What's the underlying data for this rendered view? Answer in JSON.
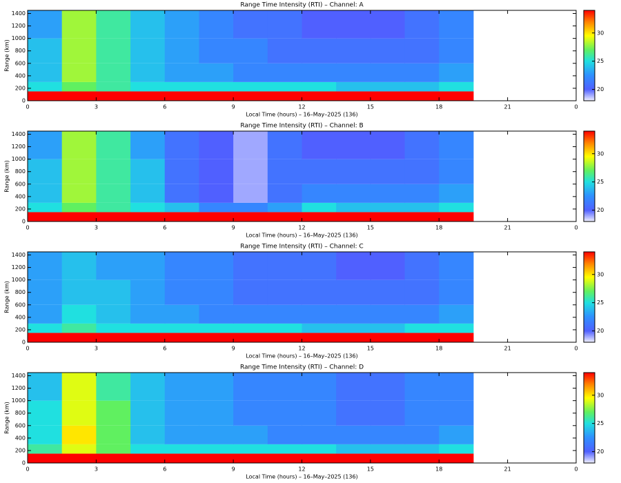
{
  "chart_data": [
    {
      "type": "heatmap",
      "title": "Range Time Intensity (RTI) – Channel: A",
      "xlabel": "Local Time (hours) – 16–May–2025 (136)",
      "ylabel": "Range (km)",
      "xlim": [
        0,
        24
      ],
      "xticks": [
        0,
        3,
        6,
        9,
        12,
        15,
        18,
        21,
        {
          "value": 24,
          "label": "0"
        }
      ],
      "ylim": [
        0,
        1450
      ],
      "yticks": [
        0,
        200,
        400,
        600,
        800,
        1000,
        1200,
        1400
      ],
      "xbins": [
        0,
        1.5,
        3,
        4.5,
        6,
        7.5,
        9,
        10.5,
        12,
        13.5,
        15,
        16.5,
        18,
        19.5
      ],
      "ybins": [
        0,
        150,
        300,
        600,
        1000,
        1450
      ],
      "z": [
        [
          34,
          34,
          34,
          34,
          34,
          34,
          34,
          34,
          34,
          34,
          34,
          34,
          34
        ],
        [
          25,
          27,
          26,
          25,
          25,
          25,
          25,
          25,
          25,
          24,
          24,
          24,
          25
        ],
        [
          24,
          28,
          26,
          24,
          23,
          23,
          22,
          22,
          22,
          22,
          22,
          22,
          23
        ],
        [
          24,
          28,
          26,
          24,
          23,
          22,
          22,
          21,
          21,
          21,
          21,
          21,
          22
        ],
        [
          23,
          28,
          26,
          24,
          23,
          22,
          21,
          21,
          20,
          20,
          20,
          21,
          22
        ]
      ],
      "clim": [
        18,
        34
      ],
      "cticks": [
        20,
        25,
        30
      ],
      "colormap": [
        {
          "value": 18,
          "color": "#f0f0ff"
        },
        {
          "value": 20,
          "color": "#5060ff"
        },
        {
          "value": 22.5,
          "color": "#2f90ff"
        },
        {
          "value": 25,
          "color": "#20e0e0"
        },
        {
          "value": 27,
          "color": "#60f060"
        },
        {
          "value": 29.5,
          "color": "#ffff00"
        },
        {
          "value": 32,
          "color": "#ff8000"
        },
        {
          "value": 34,
          "color": "#ff0000"
        }
      ]
    },
    {
      "type": "heatmap",
      "title": "Range Time Intensity (RTI) – Channel: B",
      "xlabel": "Local Time (hours) – 16–May–2025 (136)",
      "ylabel": "Range (km)",
      "xlim": [
        0,
        24
      ],
      "xticks": [
        0,
        3,
        6,
        9,
        12,
        15,
        18,
        21,
        {
          "value": 24,
          "label": "0"
        }
      ],
      "ylim": [
        0,
        1450
      ],
      "yticks": [
        0,
        200,
        400,
        600,
        800,
        1000,
        1200,
        1400
      ],
      "xbins": [
        0,
        1.5,
        3,
        4.5,
        6,
        7.5,
        9,
        10.5,
        12,
        13.5,
        15,
        16.5,
        18,
        19.5
      ],
      "ybins": [
        0,
        150,
        300,
        600,
        1000,
        1450
      ],
      "z": [
        [
          34,
          34,
          34,
          34,
          34,
          34,
          34,
          34,
          34,
          34,
          34,
          34,
          34
        ],
        [
          25,
          27,
          26,
          25,
          24,
          22,
          22,
          23,
          25,
          24,
          24,
          24,
          25
        ],
        [
          24,
          28,
          26,
          24,
          21,
          20,
          19,
          21,
          22,
          22,
          22,
          22,
          23
        ],
        [
          24,
          28,
          26,
          24,
          21,
          20,
          19,
          21,
          21,
          21,
          21,
          21,
          22
        ],
        [
          23,
          28,
          26,
          23,
          21,
          20,
          19,
          21,
          20,
          20,
          20,
          21,
          22
        ]
      ],
      "clim": [
        18,
        34
      ],
      "cticks": [
        20,
        25,
        30
      ],
      "colormap": [
        {
          "value": 18,
          "color": "#f0f0ff"
        },
        {
          "value": 20,
          "color": "#5060ff"
        },
        {
          "value": 22.5,
          "color": "#2f90ff"
        },
        {
          "value": 25,
          "color": "#20e0e0"
        },
        {
          "value": 27,
          "color": "#60f060"
        },
        {
          "value": 29.5,
          "color": "#ffff00"
        },
        {
          "value": 32,
          "color": "#ff8000"
        },
        {
          "value": 34,
          "color": "#ff0000"
        }
      ]
    },
    {
      "type": "heatmap",
      "title": "Range Time Intensity (RTI) – Channel: C",
      "xlabel": "Local Time (hours) – 16–May–2025 (136)",
      "ylabel": "Range (km)",
      "xlim": [
        0,
        24
      ],
      "xticks": [
        0,
        3,
        6,
        9,
        12,
        15,
        18,
        21,
        {
          "value": 24,
          "label": "0"
        }
      ],
      "ylim": [
        0,
        1450
      ],
      "yticks": [
        0,
        200,
        400,
        600,
        800,
        1000,
        1200,
        1400
      ],
      "xbins": [
        0,
        1.5,
        3,
        4.5,
        6,
        7.5,
        9,
        10.5,
        12,
        13.5,
        15,
        16.5,
        18,
        19.5
      ],
      "ybins": [
        0,
        150,
        300,
        600,
        1000,
        1450
      ],
      "z": [
        [
          34,
          34,
          34,
          34,
          34,
          34,
          34,
          34,
          34,
          34,
          34,
          34,
          34
        ],
        [
          25,
          26,
          25,
          25,
          25,
          25,
          25,
          25,
          24,
          24,
          24,
          25,
          25
        ],
        [
          23,
          25,
          24,
          23,
          23,
          22,
          22,
          22,
          22,
          22,
          22,
          22,
          23
        ],
        [
          23,
          24,
          24,
          23,
          22,
          22,
          21,
          21,
          21,
          21,
          21,
          21,
          22
        ],
        [
          23,
          24,
          23,
          23,
          22,
          22,
          21,
          21,
          21,
          20,
          20,
          21,
          22
        ]
      ],
      "clim": [
        18,
        34
      ],
      "cticks": [
        20,
        25,
        30
      ],
      "colormap": [
        {
          "value": 18,
          "color": "#f0f0ff"
        },
        {
          "value": 20,
          "color": "#5060ff"
        },
        {
          "value": 22.5,
          "color": "#2f90ff"
        },
        {
          "value": 25,
          "color": "#20e0e0"
        },
        {
          "value": 27,
          "color": "#60f060"
        },
        {
          "value": 29.5,
          "color": "#ffff00"
        },
        {
          "value": 32,
          "color": "#ff8000"
        },
        {
          "value": 34,
          "color": "#ff0000"
        }
      ]
    },
    {
      "type": "heatmap",
      "title": "Range Time Intensity (RTI) – Channel: D",
      "xlabel": "Local Time (hours) – 16–May–2025 (136)",
      "ylabel": "Range (km)",
      "xlim": [
        0,
        24
      ],
      "xticks": [
        0,
        3,
        6,
        9,
        12,
        15,
        18,
        21,
        {
          "value": 24,
          "label": "0"
        }
      ],
      "ylim": [
        0,
        1450
      ],
      "yticks": [
        0,
        200,
        400,
        600,
        800,
        1000,
        1200,
        1400
      ],
      "xbins": [
        0,
        1.5,
        3,
        4.5,
        6,
        7.5,
        9,
        10.5,
        12,
        13.5,
        15,
        16.5,
        18,
        19.5
      ],
      "ybins": [
        0,
        150,
        300,
        600,
        1000,
        1450
      ],
      "z": [
        [
          34,
          34,
          34,
          34,
          34,
          34,
          34,
          34,
          34,
          34,
          34,
          34,
          34
        ],
        [
          26,
          29,
          27,
          25,
          25,
          25,
          25,
          25,
          25,
          24,
          24,
          24,
          25
        ],
        [
          25,
          30,
          27,
          24,
          23,
          23,
          23,
          22,
          22,
          22,
          22,
          22,
          23
        ],
        [
          25,
          29,
          27,
          24,
          23,
          23,
          22,
          22,
          22,
          21,
          21,
          22,
          22
        ],
        [
          24,
          29,
          26,
          24,
          23,
          23,
          22,
          22,
          22,
          21,
          21,
          22,
          22
        ]
      ],
      "clim": [
        18,
        34
      ],
      "cticks": [
        20,
        25,
        30
      ],
      "colormap": [
        {
          "value": 18,
          "color": "#f0f0ff"
        },
        {
          "value": 20,
          "color": "#5060ff"
        },
        {
          "value": 22.5,
          "color": "#2f90ff"
        },
        {
          "value": 25,
          "color": "#20e0e0"
        },
        {
          "value": 27,
          "color": "#60f060"
        },
        {
          "value": 29.5,
          "color": "#ffff00"
        },
        {
          "value": 32,
          "color": "#ff8000"
        },
        {
          "value": 34,
          "color": "#ff0000"
        }
      ]
    }
  ]
}
